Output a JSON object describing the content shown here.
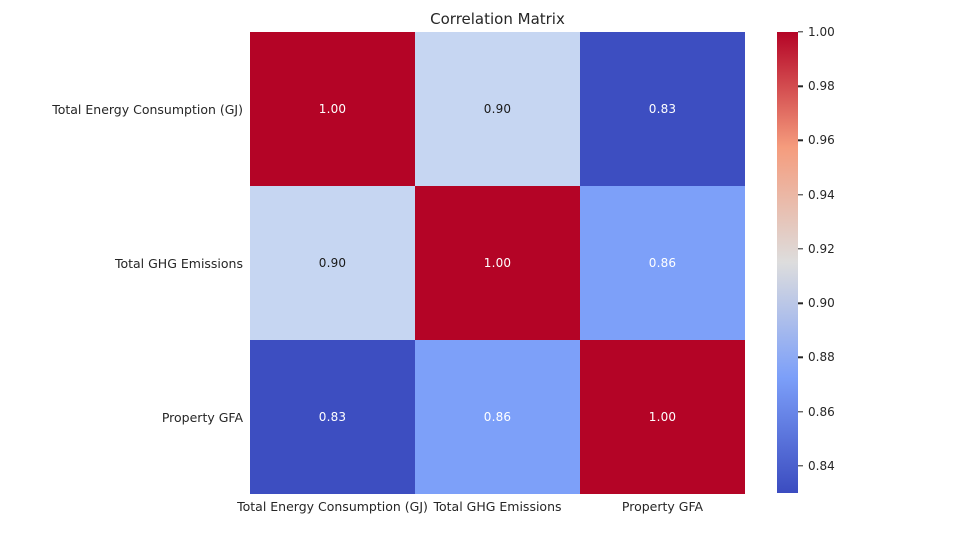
{
  "chart_data": {
    "type": "heatmap",
    "title": "Correlation Matrix",
    "categories": [
      "Total Energy Consumption (GJ)",
      "Total GHG Emissions",
      "Property GFA"
    ],
    "matrix": [
      [
        1.0,
        0.9,
        0.83
      ],
      [
        0.9,
        1.0,
        0.86
      ],
      [
        0.83,
        0.86,
        1.0
      ]
    ],
    "cell_labels": [
      [
        "1.00",
        "0.90",
        "0.83"
      ],
      [
        "0.90",
        "1.00",
        "0.86"
      ],
      [
        "0.83",
        "0.86",
        "1.00"
      ]
    ],
    "colormap": "coolwarm",
    "vmin": 0.83,
    "vmax": 1.0,
    "colorbar_ticks": [
      "1.00",
      "0.98",
      "0.96",
      "0.94",
      "0.92",
      "0.90",
      "0.88",
      "0.86",
      "0.84"
    ],
    "colorbar_position": "right",
    "grid": false,
    "value_colors": {
      "1.00": {
        "bg": "#b40426",
        "text": "#ffffff"
      },
      "0.90": {
        "bg": "#c6d6f2",
        "text": "#1a1a1a"
      },
      "0.86": {
        "bg": "#7da0f9",
        "text": "#ffffff"
      },
      "0.83": {
        "bg": "#3d4ec1",
        "text": "#ffffff"
      }
    },
    "colorbar_gradient": [
      "#b40426",
      "#f59c7d",
      "#dddddd",
      "#7c9ff9",
      "#3b4cc0"
    ]
  }
}
